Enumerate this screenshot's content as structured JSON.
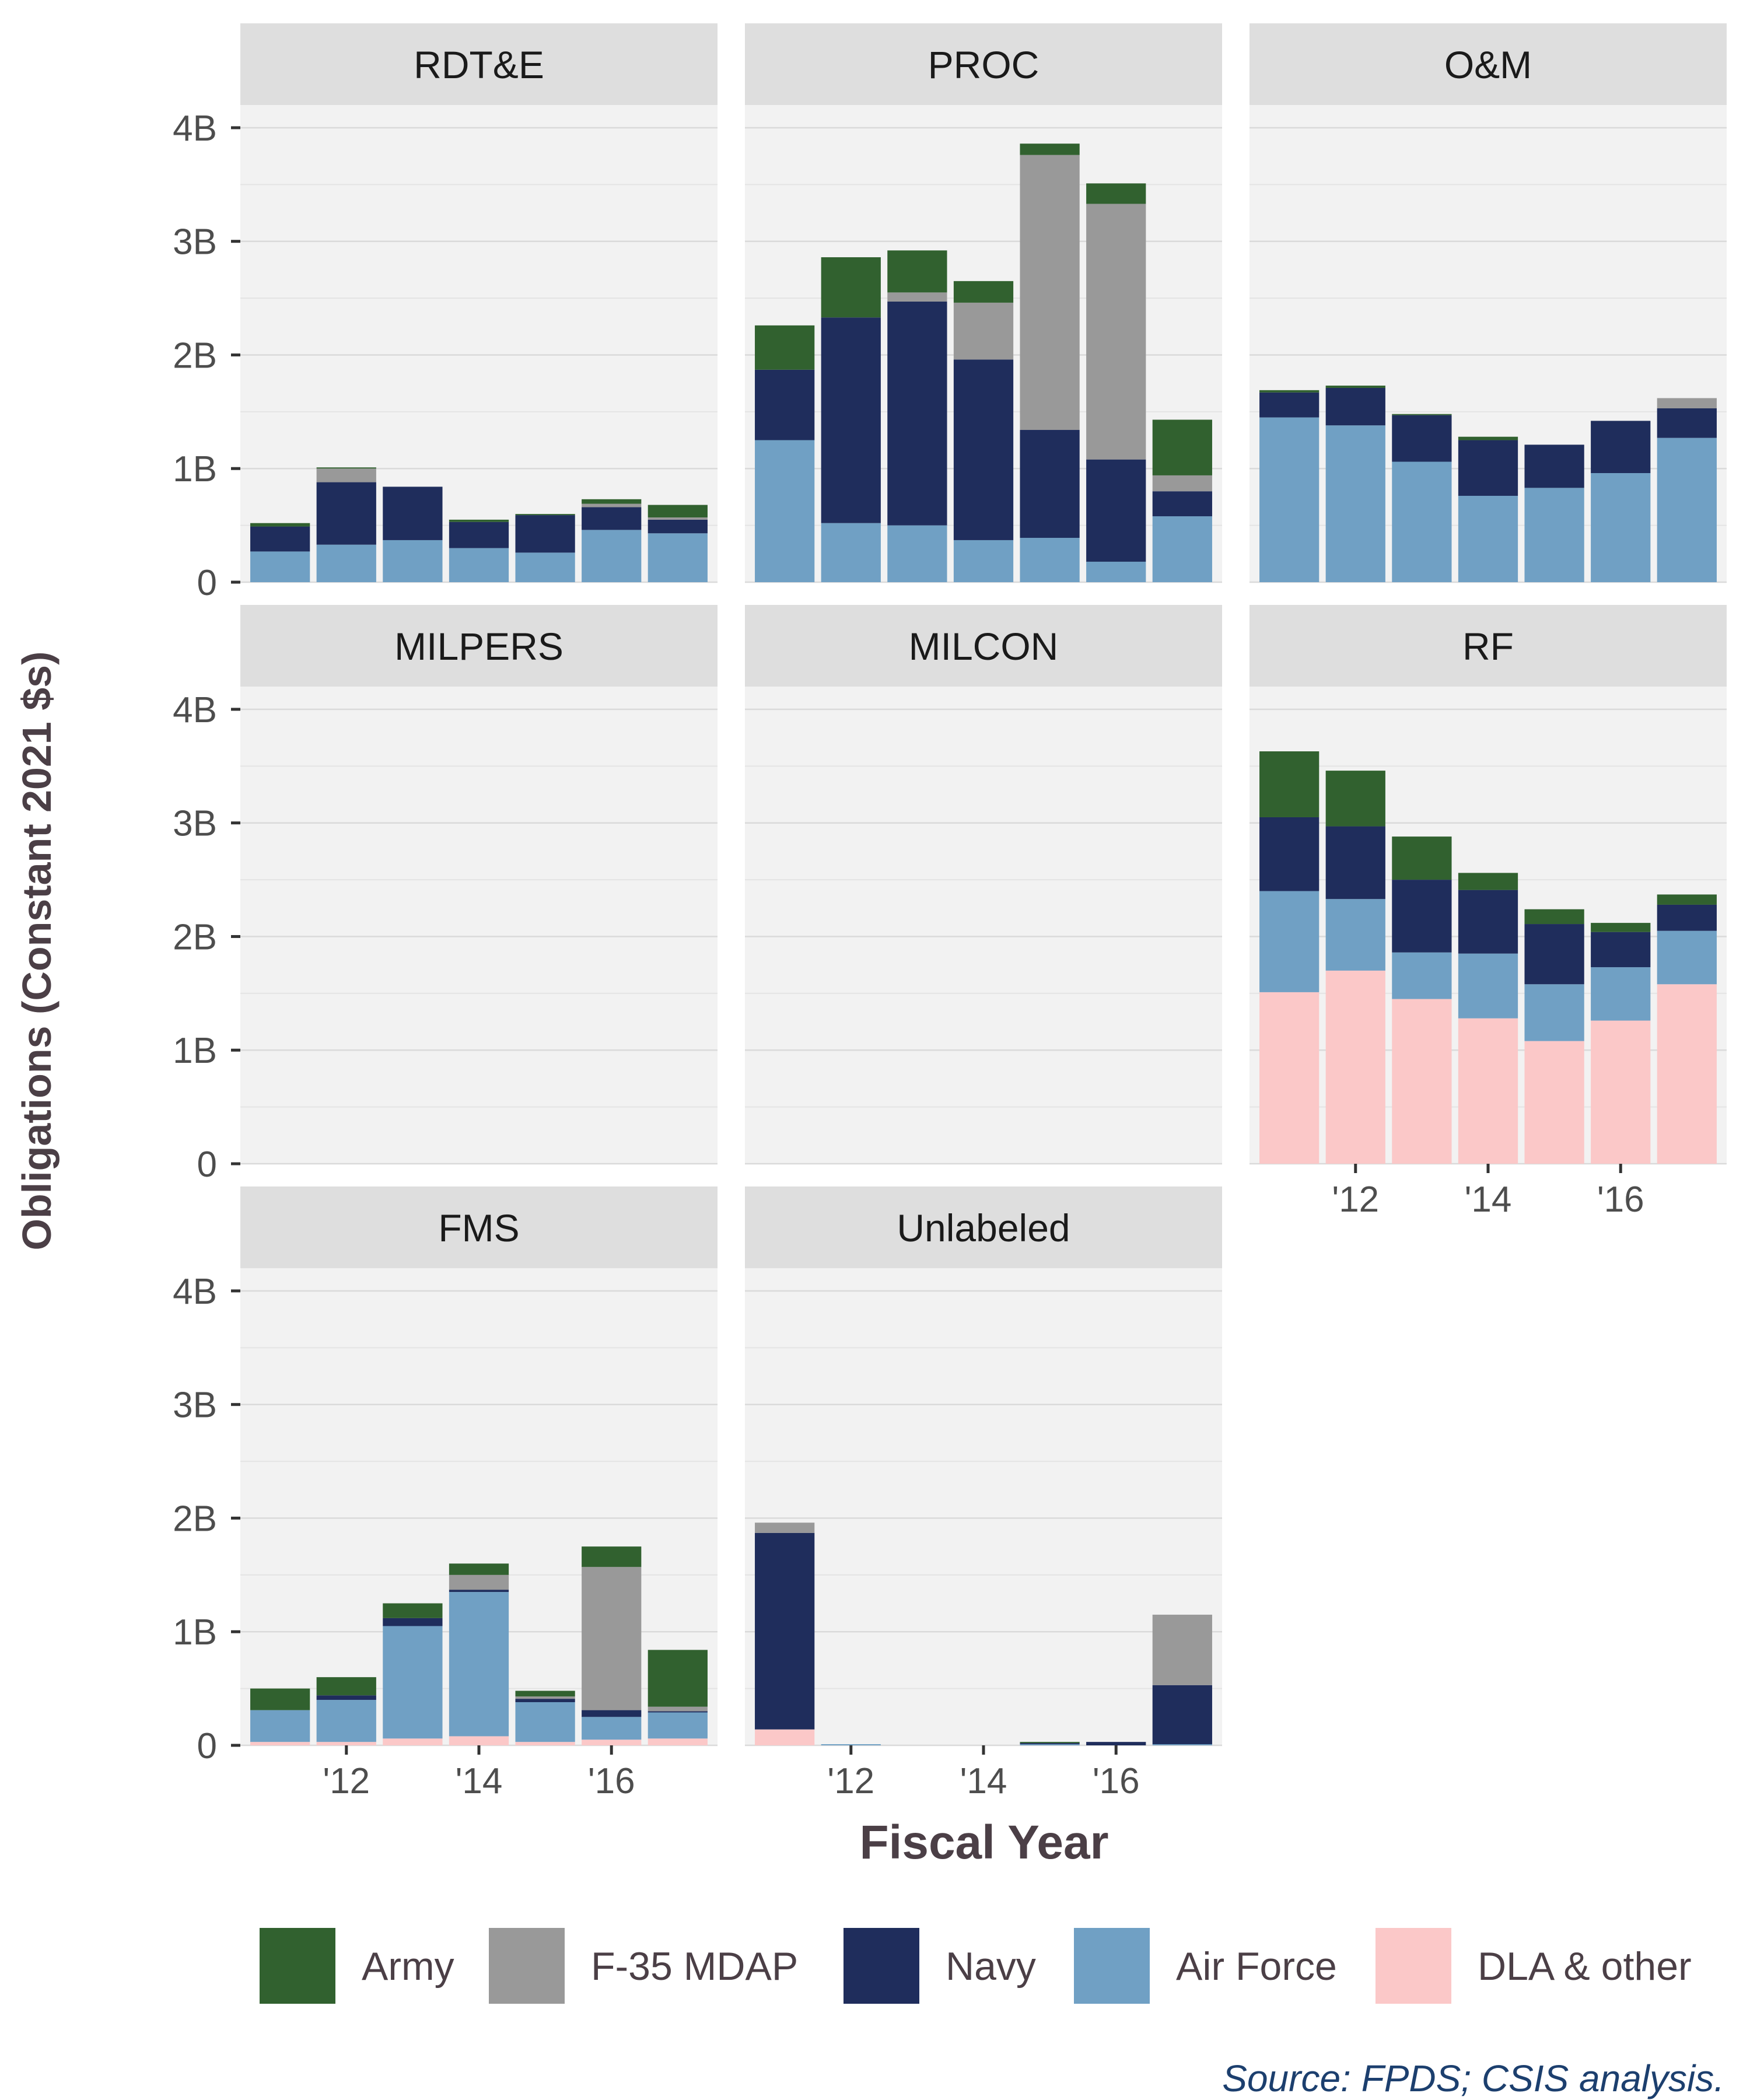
{
  "chart_data": {
    "type": "bar",
    "stacked": true,
    "faceted": true,
    "xlabel": "Fiscal Year",
    "ylabel": "Obligations (Constant 2021 $s)",
    "source": "Source: FPDS; CSIS analysis.",
    "ylim": [
      0,
      4.2
    ],
    "yticks": [
      0,
      1,
      2,
      3,
      4
    ],
    "ytick_labels": [
      "0",
      "1B",
      "2B",
      "3B",
      "4B"
    ],
    "x": [
      2011,
      2012,
      2013,
      2014,
      2015,
      2016,
      2017
    ],
    "xticks": [
      2012,
      2014,
      2016
    ],
    "xtick_labels": [
      "'12",
      "'14",
      "'16"
    ],
    "grid": true,
    "legend_position": "bottom",
    "series": [
      {
        "name": "Army",
        "color": "#31612f"
      },
      {
        "name": "F-35 MDAP",
        "color": "#999999"
      },
      {
        "name": "Navy",
        "color": "#1f2d5c"
      },
      {
        "name": "Air Force",
        "color": "#70a0c4"
      },
      {
        "name": "DLA & other",
        "color": "#fbc8c8"
      }
    ],
    "stack_order": [
      "DLA & other",
      "Air Force",
      "Navy",
      "F-35 MDAP",
      "Army"
    ],
    "panels": [
      {
        "title": "RDT&E",
        "values": {
          "DLA & other": [
            0,
            0,
            0,
            0,
            0,
            0,
            0
          ],
          "Air Force": [
            0.27,
            0.33,
            0.37,
            0.3,
            0.26,
            0.46,
            0.43
          ],
          "Navy": [
            0.22,
            0.55,
            0.47,
            0.23,
            0.33,
            0.2,
            0.12
          ],
          "F-35 MDAP": [
            0,
            0.12,
            0,
            0,
            0,
            0.03,
            0.02
          ],
          "Army": [
            0.03,
            0.01,
            0,
            0.02,
            0.01,
            0.04,
            0.11
          ]
        }
      },
      {
        "title": "PROC",
        "values": {
          "DLA & other": [
            0,
            0,
            0,
            0,
            0,
            0,
            0
          ],
          "Air Force": [
            1.25,
            0.52,
            0.5,
            0.37,
            0.39,
            0.18,
            0.58
          ],
          "Navy": [
            0.62,
            1.81,
            1.97,
            1.59,
            0.95,
            0.9,
            0.22
          ],
          "F-35 MDAP": [
            0,
            0,
            0.08,
            0.5,
            2.42,
            2.25,
            0.14
          ],
          "Army": [
            0.39,
            0.53,
            0.37,
            0.19,
            0.1,
            0.18,
            0.49
          ]
        }
      },
      {
        "title": "O&M",
        "values": {
          "DLA & other": [
            0,
            0,
            0,
            0,
            0,
            0,
            0
          ],
          "Air Force": [
            1.45,
            1.38,
            1.06,
            0.76,
            0.83,
            0.96,
            1.27
          ],
          "Navy": [
            0.22,
            0.33,
            0.41,
            0.49,
            0.38,
            0.46,
            0.26
          ],
          "F-35 MDAP": [
            0,
            0,
            0,
            0,
            0,
            0,
            0.09
          ],
          "Army": [
            0.02,
            0.02,
            0.01,
            0.03,
            0,
            0,
            0
          ]
        }
      },
      {
        "title": "MILPERS",
        "values": {
          "DLA & other": [
            0,
            0,
            0,
            0,
            0,
            0,
            0
          ],
          "Air Force": [
            0,
            0,
            0,
            0,
            0,
            0,
            0
          ],
          "Navy": [
            0,
            0,
            0,
            0,
            0,
            0,
            0
          ],
          "F-35 MDAP": [
            0,
            0,
            0,
            0,
            0,
            0,
            0
          ],
          "Army": [
            0,
            0,
            0,
            0,
            0,
            0,
            0
          ]
        }
      },
      {
        "title": "MILCON",
        "values": {
          "DLA & other": [
            0,
            0,
            0,
            0,
            0,
            0,
            0
          ],
          "Air Force": [
            0,
            0,
            0,
            0,
            0,
            0,
            0
          ],
          "Navy": [
            0,
            0,
            0,
            0,
            0,
            0,
            0
          ],
          "F-35 MDAP": [
            0,
            0,
            0,
            0,
            0,
            0,
            0
          ],
          "Army": [
            0,
            0,
            0,
            0,
            0,
            0,
            0
          ]
        }
      },
      {
        "title": "RF",
        "values": {
          "DLA & other": [
            1.51,
            1.7,
            1.45,
            1.28,
            1.08,
            1.26,
            1.58
          ],
          "Air Force": [
            0.89,
            0.63,
            0.41,
            0.57,
            0.5,
            0.47,
            0.47
          ],
          "Navy": [
            0.65,
            0.64,
            0.64,
            0.56,
            0.53,
            0.31,
            0.23
          ],
          "F-35 MDAP": [
            0,
            0,
            0,
            0,
            0,
            0,
            0
          ],
          "Army": [
            0.58,
            0.49,
            0.38,
            0.15,
            0.13,
            0.08,
            0.09
          ]
        }
      },
      {
        "title": "FMS",
        "values": {
          "DLA & other": [
            0.03,
            0.03,
            0.06,
            0.08,
            0.03,
            0.05,
            0.06
          ],
          "Air Force": [
            0.28,
            0.37,
            0.99,
            1.27,
            0.35,
            0.2,
            0.23
          ],
          "Navy": [
            0,
            0.04,
            0.07,
            0.02,
            0.03,
            0.06,
            0.01
          ],
          "F-35 MDAP": [
            0,
            0,
            0,
            0.13,
            0.02,
            1.26,
            0.04
          ],
          "Army": [
            0.19,
            0.16,
            0.13,
            0.1,
            0.05,
            0.18,
            0.5
          ]
        }
      },
      {
        "title": "Unlabeled",
        "values": {
          "DLA & other": [
            0.14,
            0,
            0,
            0,
            0,
            0,
            0
          ],
          "Air Force": [
            0,
            0.01,
            0,
            0,
            0.01,
            0,
            0.01
          ],
          "Navy": [
            1.73,
            0,
            0,
            0,
            0.01,
            0.03,
            0.52
          ],
          "F-35 MDAP": [
            0.09,
            0,
            0,
            0,
            0,
            0,
            0.62
          ],
          "Army": [
            0,
            0,
            0,
            0,
            0.01,
            0,
            0
          ]
        }
      }
    ]
  }
}
